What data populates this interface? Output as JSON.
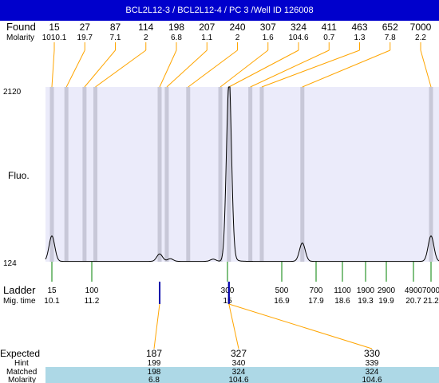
{
  "title": "BCL2L12-3 / BCL2L12-4 / PC 3 /Well ID 126008",
  "labels": {
    "found": "Found",
    "molarity": "Molarity",
    "fluo": "Fluo.",
    "ladder": "Ladder",
    "mig_time": "Mig. time",
    "expected": "Expected",
    "hint": "Hint",
    "matched": "Matched",
    "molarity_bottom": "Molarity"
  },
  "colors": {
    "title_bg": "#0000cc",
    "plot_bg": "#ebebfa",
    "lane": "#c8c8d8",
    "connector_orange": "#ffa500",
    "ladder_tick": "#008000",
    "marker_blue": "#0000aa",
    "table_bg": "#add8e6"
  },
  "chart_data": {
    "type": "line",
    "ylim": [
      124,
      2120
    ],
    "yticks": [
      "2120",
      "124"
    ],
    "found_peaks": [
      {
        "size": "15",
        "molarity": "1010.1",
        "time": 10.1
      },
      {
        "size": "27",
        "molarity": "19.7",
        "time": 10.5
      },
      {
        "size": "87",
        "molarity": "7.1",
        "time": 11.0
      },
      {
        "size": "114",
        "molarity": "2",
        "time": 11.3
      },
      {
        "size": "198",
        "molarity": "6.8",
        "time": 13.1
      },
      {
        "size": "207",
        "molarity": "1.1",
        "time": 13.3
      },
      {
        "size": "240",
        "molarity": "2",
        "time": 13.9
      },
      {
        "size": "307",
        "molarity": "1.6",
        "time": 14.8
      },
      {
        "size": "324",
        "molarity": "104.6",
        "time": 15.05
      },
      {
        "size": "411",
        "molarity": "0.7",
        "time": 15.8
      },
      {
        "size": "463",
        "molarity": "1.3",
        "time": 16.2
      },
      {
        "size": "652",
        "molarity": "7.8",
        "time": 17.5
      },
      {
        "size": "7000",
        "molarity": "2.2",
        "time": 21.2
      }
    ],
    "ladder": [
      {
        "size": "15",
        "time": "10.1"
      },
      {
        "size": "100",
        "time": "11.2"
      },
      {
        "size": "300",
        "time": "15"
      },
      {
        "size": "500",
        "time": "16.9"
      },
      {
        "size": "700",
        "time": "17.9"
      },
      {
        "size": "1100",
        "time": "18.6"
      },
      {
        "size": "1900",
        "time": "19.3"
      },
      {
        "size": "2900",
        "time": "19.9"
      },
      {
        "size": "4900",
        "time": "20.7"
      },
      {
        "size": "7000",
        "time": "21.2"
      }
    ],
    "trace_peaks": [
      {
        "time": 10.1,
        "height": 290
      },
      {
        "time": 13.1,
        "height": 85
      },
      {
        "time": 13.4,
        "height": 30
      },
      {
        "time": 14.6,
        "height": 25
      },
      {
        "time": 15.05,
        "height": 2010
      },
      {
        "time": 17.5,
        "height": 210
      },
      {
        "time": 21.2,
        "height": 290
      }
    ],
    "expected": [
      {
        "expected": "187",
        "hint": "199",
        "matched": "198",
        "molarity": "6.8",
        "time": 13.1
      },
      {
        "expected": "327",
        "hint": "340",
        "matched": "324",
        "molarity": "104.6",
        "time": 15.05
      },
      {
        "expected": "330",
        "hint": "339",
        "matched": "324",
        "molarity": "104.6",
        "time": 15.05
      }
    ]
  }
}
